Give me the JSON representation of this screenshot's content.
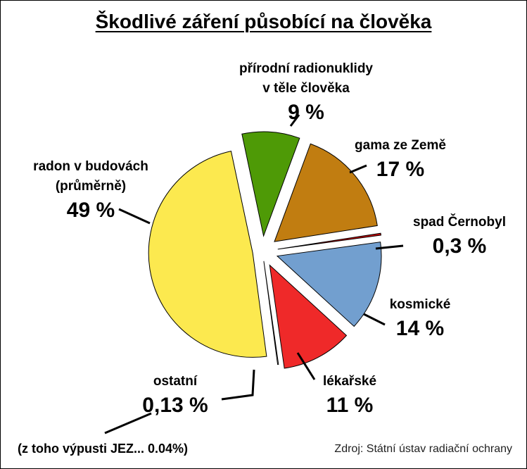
{
  "chart_data": {
    "type": "pie",
    "title": "Škodlivé záření působící na člověka",
    "source": "Zdroj: Státní ústav radiační ochrany",
    "slices": [
      {
        "name_lines": [
          "přírodní radionuklidy",
          "v těle člověka"
        ],
        "label": "9 %",
        "value": 9,
        "color": "#4e9a06"
      },
      {
        "name_lines": [
          "gama ze Země"
        ],
        "label": "17 %",
        "value": 17,
        "color": "#c17d11"
      },
      {
        "name_lines": [
          "spad Černobyl"
        ],
        "label": "0,3 %",
        "value": 0.3,
        "color": "#cc0000"
      },
      {
        "name_lines": [
          "kosmické"
        ],
        "label": "14 %",
        "value": 14,
        "color": "#729fcf"
      },
      {
        "name_lines": [
          "lékařské"
        ],
        "label": "11 %",
        "value": 11,
        "color": "#ef2929"
      },
      {
        "name_lines": [
          "ostatní"
        ],
        "label": "0,13 %",
        "value": 0.13,
        "color": "#ffffff"
      },
      {
        "name_lines": [
          "radon v budovách",
          "(průměrně)"
        ],
        "label": "49 %",
        "value": 49,
        "color": "#fce94f"
      }
    ],
    "note": "(z toho výpusti JEZ... 0.04%)"
  }
}
